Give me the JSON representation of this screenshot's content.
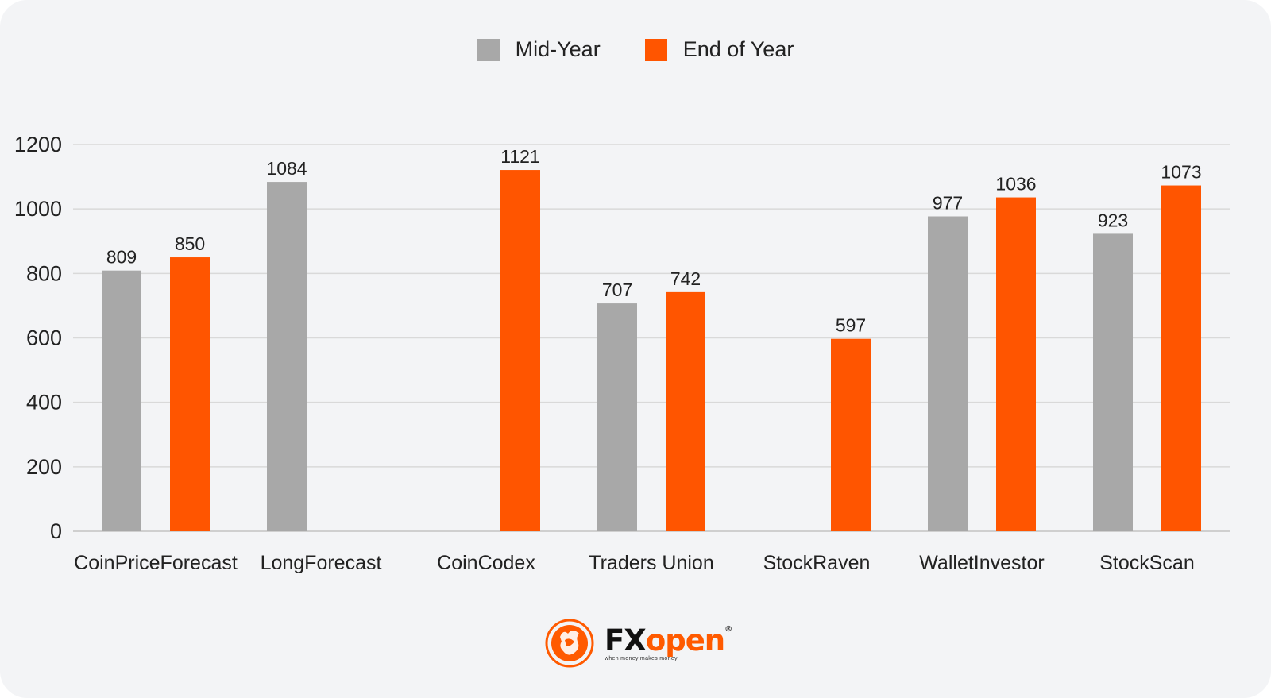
{
  "colors": {
    "background": "#f3f4f6",
    "mid_year": "#a8a8a8",
    "end_of_year": "#ff5500",
    "gridline": "#d9d9d9",
    "axis_line": "#cfcfcf"
  },
  "legend": [
    {
      "label": "Mid-Year",
      "color": "#a8a8a8"
    },
    {
      "label": "End of Year",
      "color": "#ff5500"
    }
  ],
  "chart_data": {
    "type": "bar",
    "categories": [
      "CoinPriceForecast",
      "LongForecast",
      "CoinCodex",
      "Traders Union",
      "StockRaven",
      "WalletInvestor",
      "StockScan"
    ],
    "series": [
      {
        "name": "Mid-Year",
        "values": [
          809,
          1084,
          null,
          707,
          null,
          977,
          923
        ]
      },
      {
        "name": "End of Year",
        "values": [
          850,
          null,
          1121,
          742,
          597,
          1036,
          1073
        ]
      }
    ],
    "ylim": [
      0,
      1200
    ],
    "yticks": [
      0,
      200,
      400,
      600,
      800,
      1000,
      1200
    ],
    "grid": true,
    "legend_position": "top-center",
    "data_labels": true
  },
  "logo": {
    "brand_fx": "FX",
    "brand_open": "open",
    "registered": "®",
    "tagline": "when money makes money",
    "icon": "bull-emblem-icon"
  }
}
